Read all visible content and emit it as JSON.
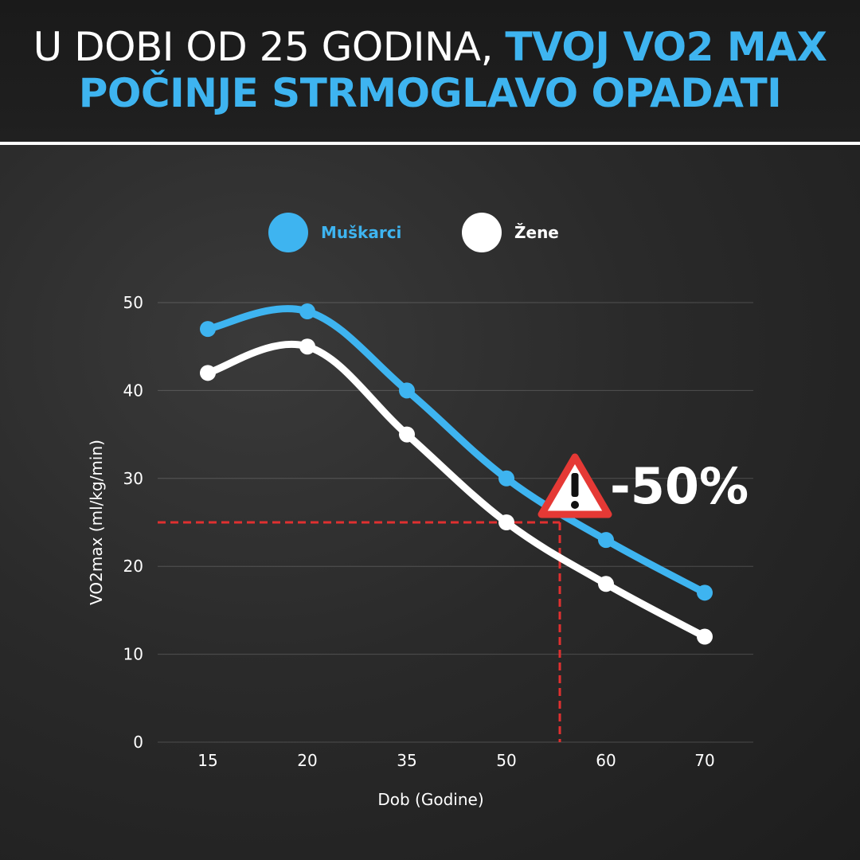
{
  "header": {
    "title_part1": "U DOBI OD 25 GODINA, ",
    "title_part2": "TVOJ VO2 MAX",
    "title_part3": "POČINJE STRMOGLAVO OPADATI"
  },
  "colors": {
    "men": "#3eb4f0",
    "women": "#ffffff",
    "marker_line": "#e03030",
    "warning": "#e53935"
  },
  "chart_data": {
    "type": "line",
    "categories": [
      "15",
      "20",
      "35",
      "50",
      "60",
      "70"
    ],
    "series": [
      {
        "name": "Muškarci",
        "values": [
          47,
          49,
          40,
          30,
          23,
          17
        ]
      },
      {
        "name": "Žene",
        "values": [
          42,
          45,
          35,
          25,
          18,
          12
        ]
      }
    ],
    "xlabel": "Dob (Godine)",
    "ylabel": "VO2max (ml/kg/min)",
    "ylim": [
      0,
      50
    ],
    "yticks": [
      "0",
      "10",
      "20",
      "30",
      "40",
      "50"
    ],
    "grid": true,
    "legend_position": "top-center",
    "annotation": {
      "text": "-50%",
      "icon": "warning-icon",
      "reference_y": 25
    }
  }
}
